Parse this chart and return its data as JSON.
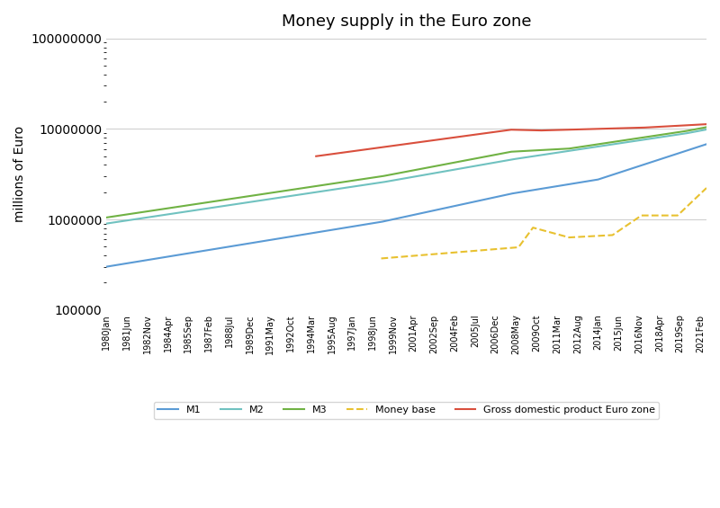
{
  "title": "Money supply in the Euro zone",
  "ylabel": "millions of Euro",
  "ylim": [
    100000,
    100000000
  ],
  "yticks": [
    100000,
    1000000,
    10000000,
    100000000
  ],
  "background_color": "#ffffff",
  "grid_color": "#cccccc",
  "series": {
    "M1": {
      "color": "#5b9bd5",
      "linewidth": 1.5
    },
    "M2": {
      "color": "#70c2c0",
      "linewidth": 1.5
    },
    "M3": {
      "color": "#70b244",
      "linewidth": 1.5
    },
    "Money base": {
      "color": "#e8c130",
      "linewidth": 1.5
    },
    "GDP": {
      "color": "#d94f3d",
      "linewidth": 1.5
    }
  },
  "xtick_labels": [
    "1980Jan",
    "1981Jun",
    "1982Nov",
    "1984Apr",
    "1985Sep",
    "1987Feb",
    "1988Jul",
    "1989Dec",
    "1991May",
    "1992Oct",
    "1994Mar",
    "1995Aug",
    "1997Jan",
    "1998Jun",
    "1999Nov",
    "2001Apr",
    "2002Sep",
    "2004Feb",
    "2005Jul",
    "2006Dec",
    "2008May",
    "2009Oct",
    "2011Mar",
    "2012Aug",
    "2014Jan",
    "2015Jun",
    "2016Nov",
    "2018Apr",
    "2019Sep",
    "2021Feb"
  ],
  "legend_labels": [
    "M1",
    "M2",
    "M3",
    "Money base",
    "Gross domestic product Euro zone"
  ]
}
